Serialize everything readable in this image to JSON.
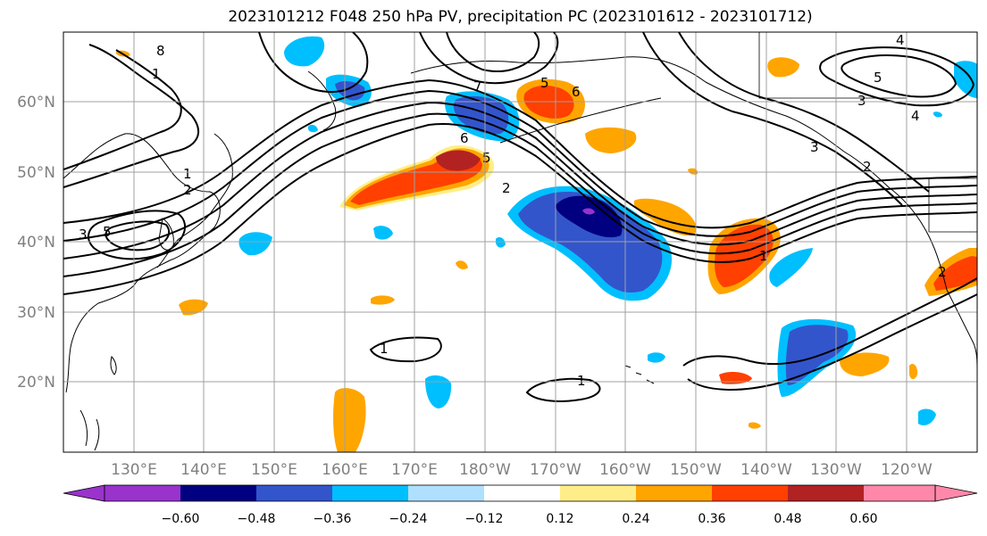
{
  "title": "2023101212 F048 250 hPa PV, precipitation PC (2023101612 - 2023101712)",
  "lat_labels": [
    "60°N",
    "50°N",
    "40°N",
    "30°N",
    "20°N"
  ],
  "lon_labels": [
    "130°E",
    "140°E",
    "150°E",
    "160°E",
    "170°E",
    "180°W",
    "170°W",
    "160°W",
    "150°W",
    "140°W",
    "130°W",
    "120°W"
  ],
  "colorbar": {
    "colors": [
      "#9933cc",
      "#000080",
      "#3355cc",
      "#00bfff",
      "#b0e0ff",
      "#ffffff",
      "#ffee88",
      "#ffa500",
      "#ff4000",
      "#b22222",
      "#ff88aa"
    ],
    "tick_labels": [
      "−0.60",
      "−0.48",
      "−0.36",
      "−0.24",
      "−0.12",
      "0.12",
      "0.24",
      "0.36",
      "0.48",
      "0.60"
    ]
  },
  "contour_labels": [
    "1",
    "2",
    "3",
    "6",
    "8",
    "5",
    "4",
    "3",
    "5",
    "7",
    "6",
    "5",
    "2",
    "1",
    "1",
    "1",
    "1",
    "2",
    "5",
    "4",
    "3",
    "2"
  ]
}
